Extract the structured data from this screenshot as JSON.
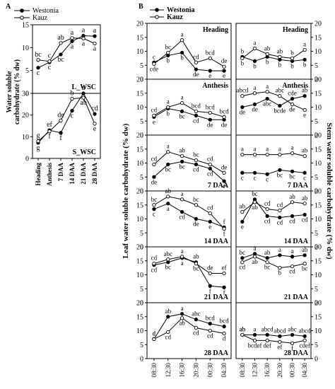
{
  "figure": {
    "panel_a": "A",
    "panel_b": "B"
  },
  "legend": [
    "Westonia",
    "Kauz"
  ],
  "series_colors": {
    "Westonia": "#000000",
    "Kauz": "#ffffff"
  },
  "chart_data": [
    {
      "id": "A_L_WSC",
      "type": "line",
      "label": "L_WSC",
      "categories": [
        "Heading",
        "Anthesis",
        "7 DAA",
        "14 DAA",
        "21 DAA",
        "28 DAA"
      ],
      "ylim": [
        0,
        15
      ],
      "yticks": [
        0,
        5,
        10,
        15
      ],
      "ylabel": "Water soluble\ncarbohydrate (% dw)",
      "series": [
        {
          "name": "Westonia",
          "values": [
            5.6,
            6.8,
            8.5,
            11.4,
            12.6,
            12.5
          ],
          "letters": [
            "c",
            "c",
            "bc",
            "a",
            "a",
            "a"
          ]
        },
        {
          "name": "Kauz",
          "values": [
            7.3,
            7.0,
            11.0,
            12.1,
            12.0,
            10.9
          ],
          "letters": [
            "bc",
            "c",
            "ab",
            "a",
            "a",
            "a"
          ]
        }
      ]
    },
    {
      "id": "A_S_WSC",
      "type": "line",
      "label": "S_WSC",
      "categories": [
        "Heading",
        "Anthesis",
        "7 DAA",
        "14 DAA",
        "21 DAA",
        "28 DAA"
      ],
      "ylim": [
        0,
        30
      ],
      "yticks": [
        0,
        10,
        20,
        30
      ],
      "series": [
        {
          "name": "Westonia",
          "values": [
            7.2,
            13.0,
            11.8,
            22.0,
            30.0,
            20.5
          ],
          "letters": [
            "g",
            "ef",
            "f",
            "c",
            "a",
            "cd"
          ]
        },
        {
          "name": "Kauz",
          "values": [
            8.0,
            12.5,
            17.5,
            27.5,
            28.0,
            16.0
          ],
          "letters": [
            "g",
            "f",
            "de",
            "b",
            "ab",
            "e"
          ]
        }
      ]
    },
    {
      "id": "B",
      "type": "line",
      "x": [
        "08:30",
        "12:30",
        "16:30",
        "20:30",
        "00:30",
        "04:30"
      ],
      "ylabel_left": "Leaf water soluble carbohydrate (% dw)",
      "ylabel_right": "Stem water soluble carbohydrate (% dw)",
      "ylim": [
        0,
        20
      ],
      "yticks": [
        0,
        5,
        10,
        15,
        20
      ],
      "stages": [
        {
          "name": "Heading",
          "leaf": {
            "Westonia": {
              "values": [
                6.0,
                8.5,
                9.5,
                3.5,
                3.0,
                3.0
              ],
              "letters": [
                "c",
                "b",
                "b",
                "de",
                "e",
                "e"
              ]
            },
            "Kauz": {
              "values": [
                5.5,
                9.5,
                14.0,
                6.0,
                7.5,
                4.5
              ],
              "letters": [
                "cde",
                "bc",
                "a",
                "cd",
                "bcd",
                "de"
              ]
            }
          },
          "stem": {
            "Westonia": {
              "values": [
                8.0,
                6.5,
                8.0,
                7.0,
                6.5,
                7.0
              ],
              "letters": [
                "b",
                "b",
                "b",
                "b",
                "b",
                "b"
              ]
            },
            "Kauz": {
              "values": [
                7.5,
                11.0,
                9.0,
                8.0,
                7.5,
                10.5
              ],
              "letters": [
                "b",
                "a",
                "ab",
                "ab",
                "b",
                "a"
              ]
            }
          }
        },
        {
          "name": "Anthesis",
          "leaf": {
            "Westonia": {
              "values": [
                6.5,
                9.5,
                8.5,
                7.0,
                5.5,
                5.5
              ],
              "letters": [
                "e",
                "b",
                "bc",
                "cd",
                "de",
                "de"
              ]
            },
            "Kauz": {
              "values": [
                7.0,
                10.0,
                11.5,
                8.5,
                8.0,
                6.5
              ],
              "letters": [
                "cd",
                "a",
                "a",
                "bcd",
                "bcd",
                "bcd"
              ]
            }
          },
          "stem": {
            "Westonia": {
              "values": [
                10.0,
                11.0,
                13.0,
                10.5,
                13.0,
                14.0
              ],
              "letters": [
                "de",
                "de",
                "abc",
                "bcde",
                "cde",
                "ab"
              ]
            },
            "Kauz": {
              "values": [
                14.0,
                15.0,
                15.5,
                14.0,
                11.0,
                9.0
              ],
              "letters": [
                "abcd",
                "a",
                "a",
                "abc",
                "de",
                "e"
              ]
            }
          }
        },
        {
          "name": "7 DAA",
          "leaf": {
            "Westonia": {
              "values": [
                5.0,
                9.5,
                10.5,
                9.5,
                8.0,
                3.5
              ],
              "letters": [
                "de",
                "bc",
                "bc",
                "cd",
                "cd",
                "e"
              ]
            },
            "Kauz": {
              "values": [
                9.5,
                14.0,
                12.5,
                11.0,
                9.5,
                6.5
              ],
              "letters": [
                "cd",
                "a",
                "ab",
                "bc",
                "cd",
                "de"
              ]
            }
          },
          "stem": {
            "Westonia": {
              "values": [
                6.5,
                6.5,
                6.0,
                7.5,
                7.0,
                6.5
              ],
              "letters": [
                "c",
                "c",
                "c",
                "bc",
                "bc",
                "c"
              ]
            },
            "Kauz": {
              "values": [
                13.0,
                13.0,
                13.0,
                13.0,
                13.5,
                12.5
              ],
              "letters": [
                "a",
                "a",
                "a",
                "a",
                "a",
                "ab"
              ]
            }
          }
        },
        {
          "name": "14 DAA",
          "leaf": {
            "Westonia": {
              "values": [
                13.5,
                15.5,
                12.5,
                10.0,
                9.0,
                7.0
              ],
              "letters": [
                "c",
                "a",
                "cd",
                "de",
                "e",
                "f"
              ]
            },
            "Kauz": {
              "values": [
                15.0,
                18.0,
                17.0,
                15.0,
                12.0,
                6.5
              ],
              "letters": [
                "bc",
                "ab",
                "a",
                "bc",
                "cd",
                "f"
              ]
            }
          },
          "stem": {
            "Westonia": {
              "values": [
                9.0,
                17.0,
                11.0,
                10.5,
                11.0,
                11.5
              ],
              "letters": [
                "e",
                "bc",
                "cd",
                "cd",
                "cd",
                "cd"
              ]
            },
            "Kauz": {
              "values": [
                12.5,
                16.0,
                13.5,
                13.0,
                16.0,
                15.5
              ],
              "letters": [
                "ab",
                "ab",
                "cd",
                "cd",
                "ab",
                "ab"
              ]
            }
          }
        },
        {
          "name": "21 DAA",
          "leaf": {
            "Westonia": {
              "values": [
                13.5,
                14.5,
                16.0,
                14.5,
                6.0,
                5.5
              ],
              "letters": [
                "cd",
                "bc",
                "a",
                "ab",
                "f",
                "f"
              ]
            },
            "Kauz": {
              "values": [
                14.0,
                15.5,
                16.5,
                14.0,
                10.5,
                10.5
              ],
              "letters": [
                "cd",
                "abc",
                "a",
                "bc",
                "de",
                "ef"
              ]
            }
          },
          "stem": {
            "Westonia": {
              "values": [
                16.0,
                17.5,
                16.0,
                17.0,
                16.5,
                17.0
              ],
              "letters": [
                "bc",
                "a",
                "ab",
                "a",
                "a",
                "ab"
              ]
            },
            "Kauz": {
              "values": [
                14.5,
                16.5,
                14.5,
                12.5,
                13.0,
                14.0
              ],
              "letters": [
                "cd",
                "ab",
                "bc",
                "b",
                "cd",
                "bc"
              ]
            }
          }
        },
        {
          "name": "28 DAA",
          "leaf": {
            "Westonia": {
              "values": [
                7.0,
                15.0,
                16.0,
                14.0,
                12.5,
                11.5
              ],
              "letters": [
                "d",
                "ab",
                "a",
                "abc",
                "bcd",
                "bcd"
              ]
            },
            "Kauz": {
              "values": [
                7.0,
                9.5,
                14.5,
                11.0,
                10.0,
                9.0
              ],
              "letters": [
                "d",
                "cd",
                "ab",
                "cd",
                "cd",
                "d"
              ]
            }
          },
          "stem": {
            "Westonia": {
              "values": [
                8.5,
                8.5,
                8.5,
                8.0,
                8.5,
                8.0
              ],
              "letters": [
                "ab",
                "a",
                "abcd",
                "abcd",
                "abc",
                "abcd"
              ]
            },
            "Kauz": {
              "values": [
                8.5,
                6.5,
                6.5,
                6.0,
                5.5,
                6.5
              ],
              "letters": [
                "ab",
                "bcdef",
                "def",
                "ef",
                "f",
                "cdef"
              ]
            }
          }
        }
      ]
    }
  ]
}
